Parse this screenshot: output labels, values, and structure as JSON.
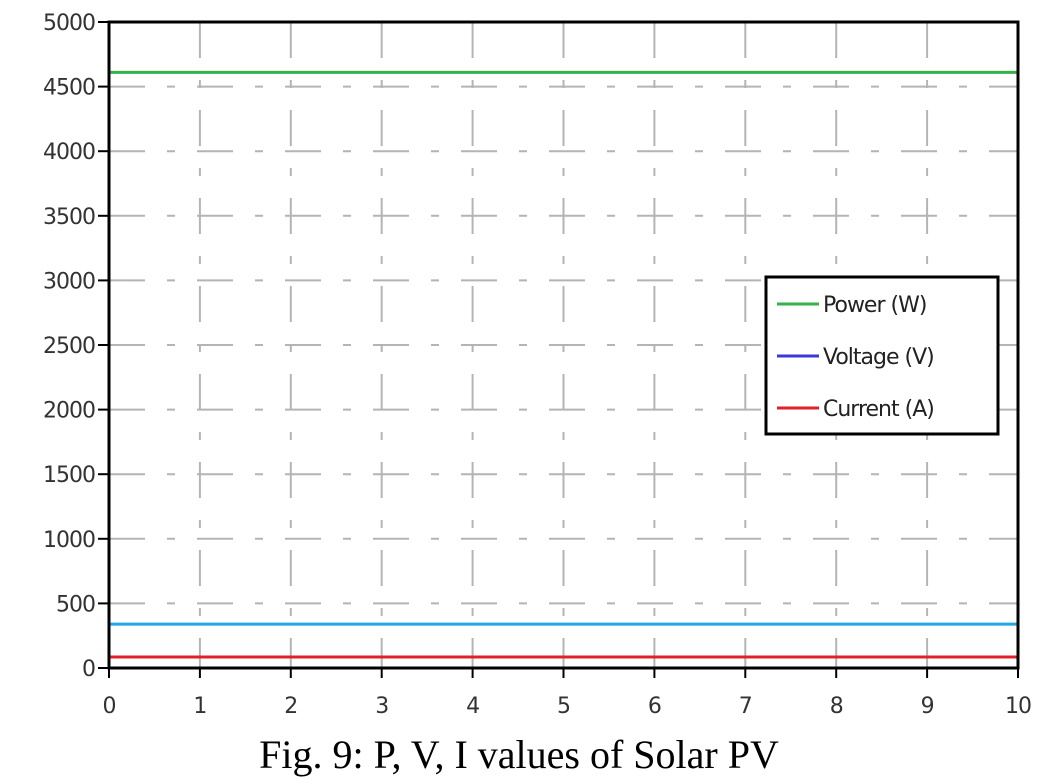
{
  "caption": "Fig. 9: P, V, I values of Solar PV",
  "chart_data": {
    "type": "line",
    "title": "",
    "xlabel": "",
    "ylabel": "",
    "xlim": [
      0,
      10
    ],
    "ylim": [
      0,
      5000
    ],
    "x_ticks": [
      0,
      1,
      2,
      3,
      4,
      5,
      6,
      7,
      8,
      9,
      10
    ],
    "y_ticks": [
      0,
      500,
      1000,
      1500,
      2000,
      2500,
      3000,
      3500,
      4000,
      4500,
      5000
    ],
    "grid": true,
    "legend_position": "right",
    "series": [
      {
        "name": "Power (W)",
        "color": "#33b24a",
        "x": [
          0,
          10
        ],
        "y": [
          4610,
          4610
        ]
      },
      {
        "name": "Voltage (V)",
        "color": "#3a3ad6",
        "x": [
          0,
          10
        ],
        "y": [
          340,
          340
        ]
      },
      {
        "name": "Current (A)",
        "color": "#e0202a",
        "x": [
          0,
          10
        ],
        "y": [
          85,
          85
        ]
      }
    ],
    "extra_lines": [
      {
        "color": "#1fa7e6",
        "x": [
          0,
          10
        ],
        "y": [
          340,
          340
        ]
      }
    ]
  }
}
